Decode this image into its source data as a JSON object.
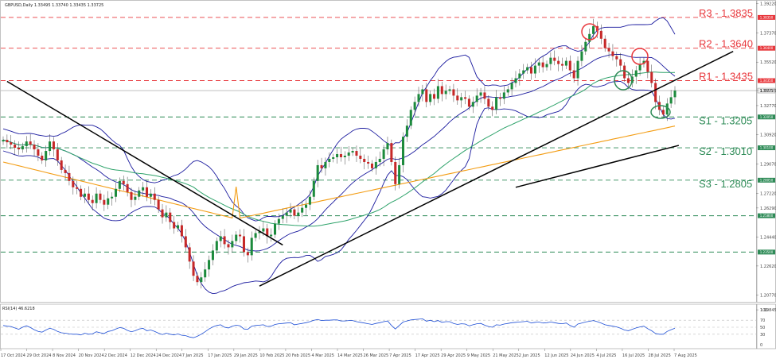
{
  "chart_data": {
    "type": "candlestick",
    "header": "GBPUSD,Daily  1.33495 1.33740 1.33435 1.33725",
    "rsi_label": "RSI(14) 46.6218",
    "price_ylim": [
      1.1985,
      1.392
    ],
    "price_ticks": [
      "1.39220",
      "1.37370",
      "1.35520",
      "1.33725",
      "1.32770",
      "1.30920",
      "1.29070",
      "1.27220",
      "1.26290",
      "1.24440",
      "1.22620",
      "1.20770",
      "1.19845"
    ],
    "rsi_ticks": [
      "100",
      "70",
      "50",
      "30",
      "0"
    ],
    "x_ticks": [
      "17 Oct 2024",
      "29 Oct 2024",
      "8 Nov 2024",
      "20 Nov 2024",
      "2 Dec 2024",
      "12 Dec 2024",
      "24 Dec 2024",
      "7 Jan 2025",
      "17 Jan 2025",
      "29 Jan 2025",
      "10 Feb 2025",
      "20 Feb 2025",
      "4 Mar 2025",
      "14 Mar 2025",
      "26 Mar 2025",
      "7 Apr 2025",
      "17 Apr 2025",
      "29 Apr 2025",
      "9 May 2025",
      "21 May 2025",
      "2 Jun 2025",
      "12 Jun 2025",
      "24 Jun 2025",
      "4 Jul 2025",
      "16 Jul 2025",
      "28 Jul 2025",
      "7 Aug 2025"
    ],
    "last_price": "1.33725",
    "levels": [
      {
        "name": "R3",
        "label": "R3 - 1.3835",
        "price": 1.3835,
        "color": "#e8383d",
        "tag": "1.38350"
      },
      {
        "name": "R2",
        "label": "R2 - 1.3640",
        "price": 1.364,
        "color": "#e8383d",
        "tag": "1.36400"
      },
      {
        "name": "R1",
        "label": "R1 - 1.3435",
        "price": 1.3435,
        "color": "#e8383d",
        "tag": "1.34350"
      },
      {
        "name": "S1",
        "label": "S1 - 1.3205",
        "price": 1.3205,
        "color": "#2e8b57",
        "tag": "1.32050"
      },
      {
        "name": "S2",
        "label": "S2 - 1.3010",
        "price": 1.301,
        "color": "#2e8b57",
        "tag": "1.30100"
      },
      {
        "name": "S3",
        "label": "S3 - 1.2805",
        "price": 1.2805,
        "color": "#2e8b57",
        "tag": "1.28050"
      },
      {
        "name": "S4",
        "label": "",
        "price": 1.258,
        "color": "#2e8b57",
        "tag": "1.25800"
      },
      {
        "name": "S5",
        "label": "",
        "price": 1.235,
        "color": "#2e8b57",
        "tag": "1.23500"
      }
    ],
    "closes": [
      1.306,
      1.3045,
      1.303,
      1.301,
      1.3,
      1.302,
      1.305,
      1.303,
      1.3,
      1.296,
      1.293,
      1.299,
      1.305,
      1.3,
      1.293,
      1.287,
      1.285,
      1.28,
      1.276,
      1.275,
      1.27,
      1.272,
      1.268,
      1.266,
      1.272,
      1.268,
      1.265,
      1.269,
      1.27,
      1.275,
      1.28,
      1.278,
      1.273,
      1.268,
      1.27,
      1.274,
      1.276,
      1.27,
      1.272,
      1.268,
      1.262,
      1.257,
      1.26,
      1.254,
      1.25,
      1.252,
      1.245,
      1.238,
      1.229,
      1.22,
      1.216,
      1.219,
      1.224,
      1.23,
      1.236,
      1.242,
      1.245,
      1.24,
      1.238,
      1.242,
      1.246,
      1.245,
      1.235,
      1.233,
      1.244,
      1.247,
      1.248,
      1.25,
      1.245,
      1.246,
      1.253,
      1.256,
      1.258,
      1.26,
      1.262,
      1.258,
      1.26,
      1.263,
      1.265,
      1.27,
      1.28,
      1.29,
      1.288,
      1.292,
      1.294,
      1.295,
      1.297,
      1.295,
      1.296,
      1.298,
      1.299,
      1.296,
      1.294,
      1.292,
      1.291,
      1.288,
      1.292,
      1.294,
      1.3,
      1.304,
      1.292,
      1.278,
      1.29,
      1.308,
      1.315,
      1.325,
      1.33,
      1.335,
      1.338,
      1.33,
      1.335,
      1.332,
      1.34,
      1.335,
      1.337,
      1.338,
      1.334,
      1.331,
      1.333,
      1.332,
      1.327,
      1.33,
      1.334,
      1.336,
      1.332,
      1.327,
      1.325,
      1.333,
      1.332,
      1.336,
      1.338,
      1.342,
      1.345,
      1.348,
      1.35,
      1.352,
      1.348,
      1.353,
      1.355,
      1.352,
      1.354,
      1.358,
      1.356,
      1.354,
      1.353,
      1.356,
      1.35,
      1.345,
      1.356,
      1.362,
      1.368,
      1.373,
      1.378,
      1.375,
      1.37,
      1.364,
      1.362,
      1.359,
      1.357,
      1.353,
      1.345,
      1.342,
      1.346,
      1.35,
      1.354,
      1.356,
      1.349,
      1.342,
      1.33,
      1.325,
      1.322,
      1.329,
      1.333,
      1.3372
    ],
    "rsi": [
      55,
      53,
      52,
      48,
      44,
      50,
      54,
      49,
      43,
      38,
      36,
      42,
      47,
      44,
      38,
      34,
      33,
      31,
      30,
      30,
      28,
      33,
      30,
      31,
      37,
      34,
      32,
      38,
      40,
      45,
      49,
      47,
      41,
      37,
      40,
      45,
      47,
      40,
      42,
      38,
      33,
      29,
      33,
      30,
      28,
      31,
      27,
      26,
      22,
      20,
      24,
      30,
      37,
      45,
      51,
      55,
      57,
      50,
      48,
      53,
      56,
      54,
      45,
      44,
      53,
      55,
      56,
      57,
      52,
      53,
      58,
      60,
      61,
      62,
      63,
      57,
      59,
      61,
      63,
      66,
      70,
      72,
      69,
      70,
      70,
      71,
      71,
      68,
      68,
      69,
      69,
      66,
      64,
      62,
      60,
      58,
      61,
      63,
      66,
      68,
      55,
      45,
      55,
      65,
      68,
      71,
      72,
      73,
      74,
      67,
      70,
      66,
      69,
      64,
      66,
      66,
      61,
      58,
      60,
      59,
      54,
      57,
      60,
      61,
      56,
      52,
      50,
      57,
      56,
      59,
      61,
      63,
      64,
      65,
      66,
      67,
      62,
      64,
      65,
      62,
      63,
      65,
      63,
      61,
      60,
      62,
      55,
      50,
      59,
      62,
      65,
      67,
      69,
      66,
      62,
      57,
      55,
      53,
      51,
      47,
      42,
      40,
      44,
      48,
      51,
      53,
      46,
      40,
      32,
      30,
      30,
      38,
      43,
      47
    ]
  }
}
